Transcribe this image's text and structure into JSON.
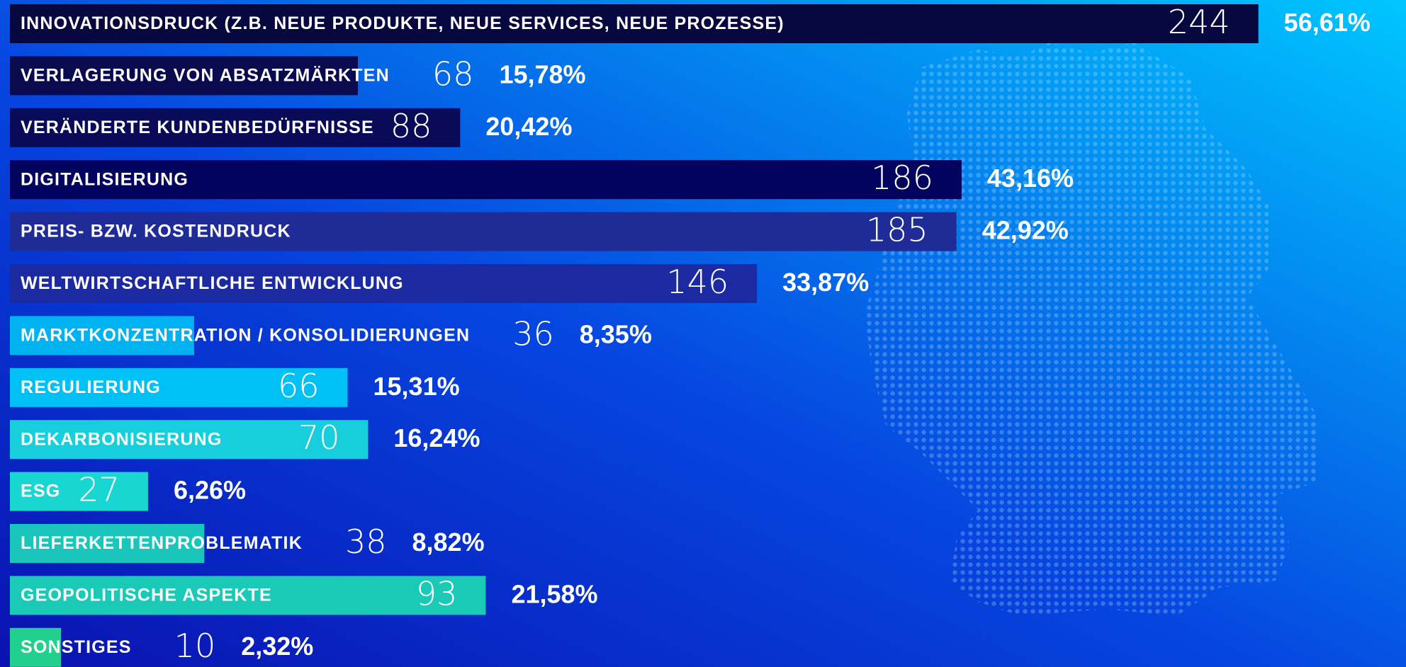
{
  "chart_data": {
    "type": "bar",
    "categories": [
      "INNOVATIONSDRUCK (Z.B. NEUE PRODUKTE, NEUE SERVICES, NEUE PROZESSE)",
      "VERLAGERUNG VON ABSATZMÄRKTEN",
      "VERÄNDERTE KUNDENBEDÜRFNISSE",
      "DIGITALISIERUNG",
      "PREIS- BZW. KOSTENDRUCK",
      "WELTWIRTSCHAFTLICHE ENTWICKLUNG",
      "MARKTKONZENTRATION / KONSOLIDIERUNGEN",
      "REGULIERUNG",
      "DEKARBONISIERUNG",
      "ESG",
      "LIEFERKETTENPROBLEMATIK",
      "GEOPOLITISCHE ASPEKTE",
      "SONSTIGES"
    ],
    "values": [
      244,
      68,
      88,
      186,
      185,
      146,
      36,
      66,
      70,
      27,
      38,
      93,
      10
    ],
    "shares": [
      56.61,
      15.78,
      20.42,
      43.16,
      42.92,
      33.87,
      8.35,
      15.31,
      16.24,
      6.26,
      8.82,
      21.58,
      2.32
    ],
    "share_labels": [
      "56,61%",
      "15,78%",
      "20,42%",
      "43,16%",
      "42,92%",
      "33,87%",
      "8,35%",
      "15,31%",
      "16,24%",
      "6,26%",
      "8,82%",
      "21,58%",
      "2,32%"
    ],
    "colors": [
      "#07083f",
      "#0a0a4e",
      "#0a0b58",
      "#02035e",
      "#1f2b97",
      "#1b2aa0",
      "#00b2f0",
      "#00c0f6",
      "#17cfdc",
      "#18d6d2",
      "#1ac6bc",
      "#1ac9b6",
      "#22d08e"
    ]
  }
}
